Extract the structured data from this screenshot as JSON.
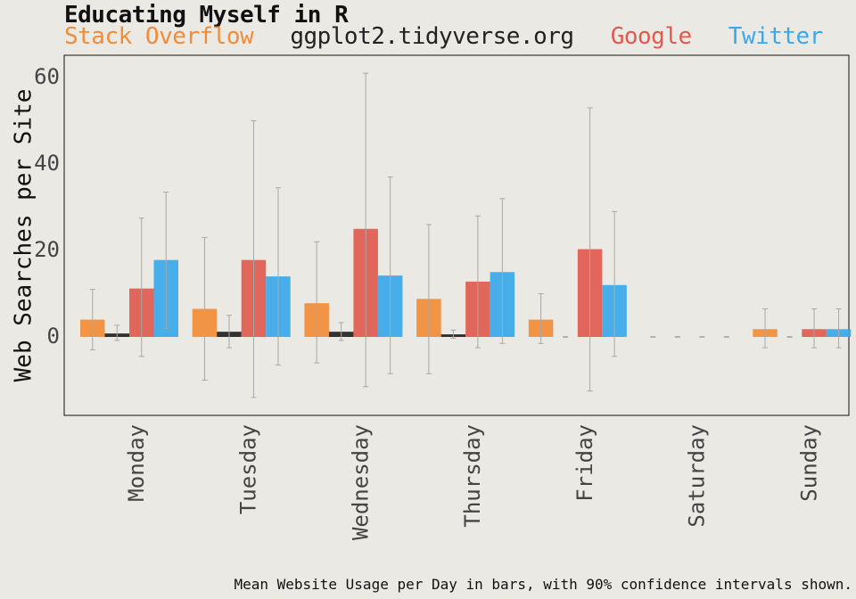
{
  "chart_data": {
    "type": "bar",
    "title": "Educating Myself in R",
    "ylabel": "Web Searches per Site",
    "xlabel": "",
    "caption": "Mean Website Usage per Day in bars, with 90% confidence intervals shown.",
    "ylim": [
      -18,
      65
    ],
    "yticks": [
      0,
      20,
      40,
      60
    ],
    "grid": false,
    "legend_position": "top",
    "categories": [
      "Monday",
      "Tuesday",
      "Wednesday",
      "Thursday",
      "Friday",
      "Saturday",
      "Sunday"
    ],
    "series": [
      {
        "name": "Stack Overflow",
        "color": "#f28c38",
        "values": [
          4.0,
          6.5,
          7.8,
          8.8,
          4.0,
          0,
          1.8
        ],
        "ci_low": [
          -3.0,
          -10.0,
          -6.0,
          -8.5,
          -1.5,
          0,
          -2.5
        ],
        "ci_high": [
          11.0,
          23.0,
          22.0,
          26.0,
          10.0,
          0,
          6.5
        ]
      },
      {
        "name": "ggplot2.tidyverse.org",
        "color": "#222222",
        "values": [
          0.8,
          1.2,
          1.2,
          0.6,
          0,
          0,
          0
        ],
        "ci_low": [
          -0.8,
          -2.5,
          -0.8,
          -0.3,
          0,
          0,
          0
        ],
        "ci_high": [
          2.7,
          5.0,
          3.3,
          1.6,
          0,
          0,
          0
        ]
      },
      {
        "name": "Google",
        "color": "#e05a4f",
        "values": [
          11.2,
          17.8,
          25.0,
          12.8,
          20.3,
          0,
          1.8
        ],
        "ci_low": [
          -4.5,
          -14.0,
          -11.5,
          -2.5,
          -12.5,
          0,
          -2.5
        ],
        "ci_high": [
          27.5,
          50.0,
          61.0,
          28.0,
          53.0,
          0,
          6.5
        ]
      },
      {
        "name": "Twitter",
        "color": "#3aa8ea",
        "values": [
          17.8,
          14.0,
          14.2,
          15.0,
          12.0,
          0,
          1.8
        ],
        "ci_low": [
          2.0,
          -6.5,
          -8.5,
          -1.5,
          -4.5,
          0,
          -2.5
        ],
        "ci_high": [
          33.5,
          34.5,
          37.0,
          32.0,
          29.0,
          0,
          6.5
        ]
      }
    ]
  }
}
